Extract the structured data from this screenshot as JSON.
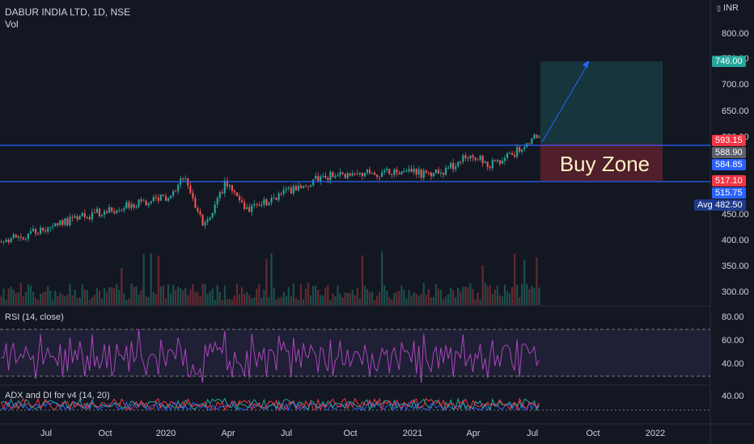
{
  "header": {
    "symbol": "DABUR INDIA LTD, 1D, NSE",
    "volume_label": "Vol",
    "currency": "INR"
  },
  "annotation": {
    "text": "Buy Zone"
  },
  "price_axis": {
    "ticks": [
      "800.00",
      "750.00",
      "700.00",
      "650.00",
      "600.00",
      "450.00",
      "400.00",
      "350.00",
      "300.00"
    ]
  },
  "price_tags": [
    {
      "text": "746.00",
      "color": "#26a69a"
    },
    {
      "text": "593.15",
      "color": "#f23645"
    },
    {
      "text": "588.90",
      "color": "#5d606b"
    },
    {
      "text": "584.85",
      "color": "#2962ff"
    },
    {
      "text": "517.10",
      "color": "#f23645"
    },
    {
      "text": "515.75",
      "color": "#2962ff"
    }
  ],
  "avg_tag": {
    "label": "Avg",
    "value": "482.50"
  },
  "rsi": {
    "label": "RSI (14, close)",
    "ticks": [
      "80.00",
      "60.00",
      "40.00"
    ],
    "upper": 70,
    "lower": 30
  },
  "adx": {
    "label": "ADX and DI for v4 (14, 20)",
    "ticks": [
      "40.00"
    ]
  },
  "time_axis": {
    "labels": [
      "Jul",
      "Oct",
      "2020",
      "Apr",
      "Jul",
      "Oct",
      "2021",
      "Apr",
      "Jul",
      "Oct",
      "2022"
    ]
  },
  "chart_data": {
    "type": "candlestick",
    "title": "DABUR INDIA LTD, 1D, NSE",
    "ylabel": "INR",
    "x_range": [
      "2019-05",
      "2022-01"
    ],
    "ylim": [
      290,
      830
    ],
    "horizontal_levels": [
      588.9,
      517.1
    ],
    "target": 746.0,
    "price_path_approx": [
      {
        "x": "2019-05",
        "y": 390
      },
      {
        "x": "2019-07",
        "y": 415
      },
      {
        "x": "2019-09",
        "y": 440
      },
      {
        "x": "2019-11",
        "y": 460
      },
      {
        "x": "2020-01",
        "y": 475
      },
      {
        "x": "2020-02",
        "y": 515
      },
      {
        "x": "2020-03",
        "y": 420
      },
      {
        "x": "2020-04",
        "y": 505
      },
      {
        "x": "2020-05",
        "y": 450
      },
      {
        "x": "2020-07",
        "y": 490
      },
      {
        "x": "2020-09",
        "y": 520
      },
      {
        "x": "2020-11",
        "y": 525
      },
      {
        "x": "2021-01",
        "y": 530
      },
      {
        "x": "2021-02",
        "y": 520
      },
      {
        "x": "2021-03",
        "y": 535
      },
      {
        "x": "2021-04",
        "y": 565
      },
      {
        "x": "2021-05",
        "y": 540
      },
      {
        "x": "2021-06",
        "y": 560
      },
      {
        "x": "2021-07",
        "y": 593
      }
    ],
    "rsi_ylim": [
      20,
      85
    ],
    "adx_ylim": [
      0,
      50
    ]
  }
}
